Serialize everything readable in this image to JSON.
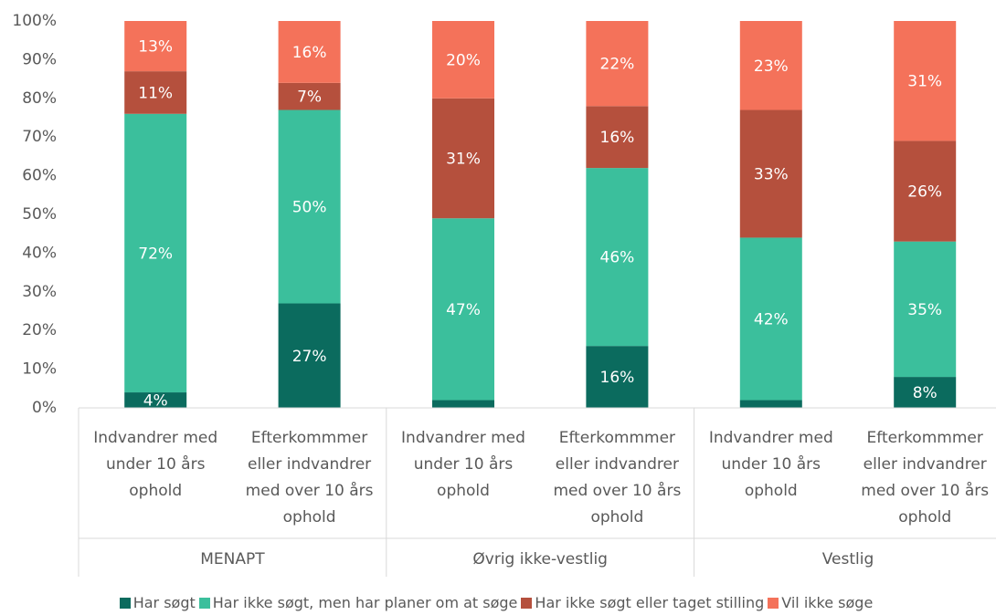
{
  "chart_data": {
    "type": "stacked_bar",
    "categories": [
      "Indvandrer med under 10 års ophold",
      "Efterkommmer eller indvandrer med over 10 års ophold",
      "Indvandrer med under 10 års ophold",
      "Efterkommmer eller indvandrer med over 10 års ophold",
      "Indvandrer med under 10 års ophold",
      "Efterkommmer eller indvandrer med over 10 års ophold"
    ],
    "category_groups": [
      "MENAPT",
      "Øvrig ikke-vestlig",
      "Vestlig"
    ],
    "series": [
      {
        "name": "Har søgt",
        "color": "#0b6b5e",
        "values": [
          4,
          27,
          2,
          16,
          2,
          8
        ],
        "value_labels": [
          "4%",
          "27%",
          null,
          "16%",
          null,
          "8%"
        ]
      },
      {
        "name": "Har ikke søgt, men har planer om at søge",
        "color": "#3bbf9c",
        "values": [
          72,
          50,
          47,
          46,
          42,
          35
        ],
        "value_labels": [
          "72%",
          "50%",
          "47%",
          "46%",
          "42%",
          "35%"
        ]
      },
      {
        "name": "Har ikke søgt eller taget stilling",
        "color": "#b5503d",
        "values": [
          11,
          7,
          31,
          16,
          33,
          26
        ],
        "value_labels": [
          "11%",
          "7%",
          "31%",
          "16%",
          "33%",
          "26%"
        ]
      },
      {
        "name": "Vil ikke søge",
        "color": "#f4725a",
        "values": [
          13,
          16,
          20,
          22,
          23,
          31
        ],
        "value_labels": [
          "13%",
          "16%",
          "20%",
          "22%",
          "23%",
          "31%"
        ]
      }
    ],
    "ylim": [
      0,
      100
    ],
    "yticks": [
      {
        "value": 0,
        "label": "0%"
      },
      {
        "value": 10,
        "label": "10%"
      },
      {
        "value": 20,
        "label": "20%"
      },
      {
        "value": 30,
        "label": "30%"
      },
      {
        "value": 40,
        "label": "40%"
      },
      {
        "value": 50,
        "label": "50%"
      },
      {
        "value": 60,
        "label": "60%"
      },
      {
        "value": 70,
        "label": "70%"
      },
      {
        "value": 80,
        "label": "80%"
      },
      {
        "value": 90,
        "label": "90%"
      },
      {
        "value": 100,
        "label": "100%"
      }
    ],
    "grid": false,
    "legend": "bottom"
  }
}
